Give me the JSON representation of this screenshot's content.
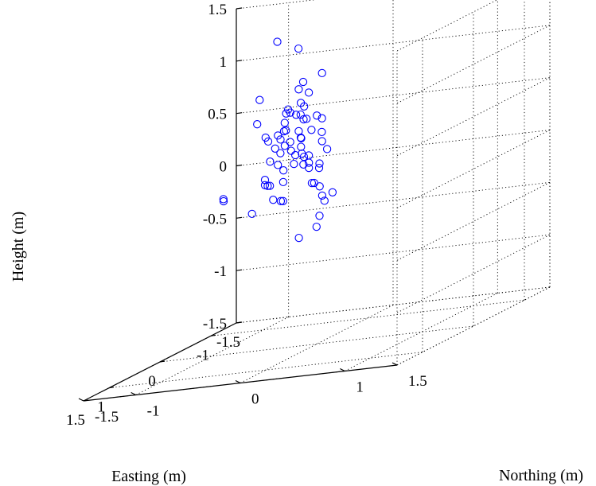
{
  "chart_data": {
    "type": "scatter",
    "title": "",
    "xlabel": "Easting (m)",
    "ylabel": "Northing (m)",
    "zlabel": "Height (m)",
    "xlim": [
      -1.5,
      1.5
    ],
    "ylim": [
      -1.5,
      1.5
    ],
    "zlim": [
      -1.5,
      1.5
    ],
    "x_ticks": [
      "1.5",
      "1",
      "0",
      "-1",
      "-1.5"
    ],
    "y_ticks": [
      "-1.5",
      "-1",
      "0",
      "1",
      "1.5"
    ],
    "z_ticks": [
      "1.5",
      "1",
      "0.5",
      "0",
      "-0.5",
      "-1",
      "-1.5"
    ],
    "grid": true,
    "marker": "circle",
    "color": "#0000ff",
    "points": [
      [
        0.95,
        0.15,
        0.75
      ],
      [
        -0.15,
        -0.45,
        1.4
      ],
      [
        0.05,
        -0.15,
        1.35
      ],
      [
        0.1,
        0.1,
        1.1
      ],
      [
        0.6,
        0.0,
        0.85
      ],
      [
        0.9,
        -0.05,
        0.7
      ],
      [
        0.25,
        -0.05,
        1.0
      ],
      [
        -0.35,
        -0.3,
        0.95
      ],
      [
        0.35,
        0.05,
        0.85
      ],
      [
        0.15,
        -0.2,
        0.8
      ],
      [
        -0.05,
        -0.1,
        0.9
      ],
      [
        0.2,
        0.0,
        0.7
      ],
      [
        0.1,
        0.05,
        0.7
      ],
      [
        -0.2,
        -0.35,
        0.7
      ],
      [
        0.4,
        -0.1,
        0.65
      ],
      [
        0.0,
        0.05,
        0.65
      ],
      [
        0.3,
        -0.2,
        0.55
      ],
      [
        0.0,
        -0.05,
        0.55
      ],
      [
        0.35,
        -0.2,
        0.6
      ],
      [
        -0.1,
        0.0,
        0.5
      ],
      [
        0.6,
        0.15,
        0.45
      ],
      [
        0.1,
        -0.1,
        0.5
      ],
      [
        0.0,
        -0.15,
        0.4
      ],
      [
        0.2,
        -0.25,
        0.4
      ],
      [
        0.3,
        -0.3,
        0.35
      ],
      [
        0.1,
        0.1,
        0.45
      ],
      [
        -0.3,
        -0.3,
        0.65
      ],
      [
        0.55,
        0.05,
        0.35
      ],
      [
        0.85,
        -0.05,
        0.65
      ],
      [
        0.0,
        0.1,
        0.35
      ],
      [
        -0.05,
        -0.1,
        0.3
      ],
      [
        0.25,
        -0.25,
        0.3
      ],
      [
        0.15,
        0.1,
        0.25
      ],
      [
        0.05,
        -0.05,
        0.25
      ],
      [
        -0.4,
        -0.4,
        0.25
      ],
      [
        0.4,
        -0.3,
        0.2
      ],
      [
        0.4,
        -0.3,
        0.15
      ],
      [
        0.05,
        -0.05,
        0.2
      ],
      [
        0.35,
        -0.15,
        0.15
      ],
      [
        -0.15,
        -0.05,
        0.15
      ],
      [
        0.2,
        -0.3,
        0.45
      ],
      [
        0.25,
        0.15,
        0.05
      ],
      [
        0.5,
        -0.1,
        0.0
      ],
      [
        0.1,
        0.2,
        -0.05
      ],
      [
        0.45,
        -0.4,
        -0.1
      ],
      [
        0.2,
        0.15,
        -0.05
      ],
      [
        0.7,
        -0.55,
        0.1
      ],
      [
        0.6,
        -0.6,
        0.1
      ],
      [
        0.25,
        -0.2,
        -0.05
      ],
      [
        -0.1,
        -0.05,
        -0.4
      ],
      [
        0.35,
        0.0,
        -0.4
      ],
      [
        0.65,
        -0.1,
        0.05
      ],
      [
        -0.4,
        -0.5,
        0.35
      ],
      [
        0.45,
        -0.25,
        0.15
      ],
      [
        -0.5,
        -0.55,
        0.55
      ],
      [
        -0.1,
        -0.2,
        0.8
      ],
      [
        0.25,
        -0.05,
        0.6
      ],
      [
        -0.05,
        -0.15,
        0.65
      ],
      [
        -0.3,
        -0.4,
        0.4
      ],
      [
        0.3,
        0.1,
        0.1
      ],
      [
        0.2,
        -0.35,
        0.1
      ],
      [
        0.05,
        0.0,
        0.05
      ],
      [
        0.4,
        -0.05,
        0.45
      ],
      [
        0.25,
        0.0,
        0.35
      ],
      [
        -0.2,
        -0.25,
        0.45
      ],
      [
        0.45,
        -0.35,
        0.75
      ],
      [
        -0.15,
        -0.2,
        0.2
      ],
      [
        0.2,
        -0.1,
        0.75
      ],
      [
        0.15,
        0.1,
        -0.25
      ],
      [
        -0.05,
        0.05,
        -0.15
      ],
      [
        0.3,
        -0.4,
        0.95
      ],
      [
        0.55,
        -0.05,
        0.3
      ]
    ]
  }
}
